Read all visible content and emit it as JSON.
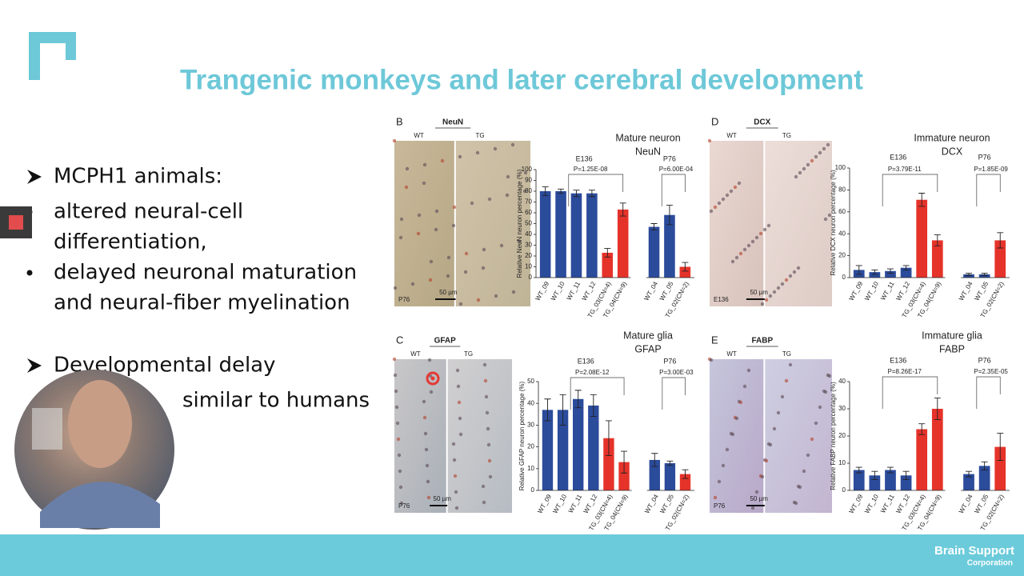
{
  "slide_title": "Trangenic monkeys and later cerebral development",
  "sections": [
    {
      "heading": [
        "MCPH1 animals:"
      ],
      "items": [
        [
          "altered neural-cell",
          "differentiation,"
        ],
        [
          "delayed neuronal maturation",
          "and neural-fiber myelination"
        ]
      ]
    },
    {
      "heading": [
        "Developmental delay",
        "similar to humans"
      ],
      "items": []
    }
  ],
  "footer": {
    "brand": "Brain Support",
    "brand_sub": "Corporation"
  },
  "chart_data": [
    {
      "type": "bar",
      "panel": "B",
      "stain": "NeuN",
      "image_labels": [
        "WT",
        "TG"
      ],
      "stage": "P76",
      "scale": "50 µm",
      "title": [
        "Mature neuron",
        "NeuN"
      ],
      "y_label": "Relative NeuN neuron percentage (%)",
      "categories": [
        "WT_09",
        "WT_10",
        "WT_11",
        "WT_12",
        "TG_03(CN=4)",
        "TG_04(CN=9)",
        "WT_04",
        "WT_05",
        "TG_02(CN=2)"
      ],
      "values": [
        80,
        80,
        78,
        78,
        23,
        63,
        47,
        58,
        10
      ],
      "errors": [
        4,
        2,
        3,
        3,
        4,
        6,
        3,
        9,
        4
      ],
      "colors": [
        "#2b4b9b",
        "#2b4b9b",
        "#2b4b9b",
        "#2b4b9b",
        "#e5332a",
        "#e5332a",
        "#2b4b9b",
        "#2b4b9b",
        "#e5332a"
      ],
      "groups": [
        {
          "label": "E136",
          "p": "P=1.25E-08"
        },
        {
          "label": "P76",
          "p": "P=6.00E-04"
        }
      ],
      "ylim": [
        0,
        100
      ],
      "yticks": [
        0,
        10,
        20,
        30,
        40,
        50,
        60,
        70,
        80,
        90,
        100
      ]
    },
    {
      "type": "bar",
      "panel": "D",
      "stain": "DCX",
      "image_labels": [
        "WT",
        "TG"
      ],
      "stage": "E136",
      "scale": "50 µm",
      "title": [
        "Immature neuron",
        "DCX"
      ],
      "y_label": "Relative DCX neuron percentage (%)",
      "categories": [
        "WT_09",
        "WT_10",
        "WT_11",
        "WT_12",
        "TG_03(CN=4)",
        "TG_04(CN=9)",
        "WT_04",
        "WT_05",
        "TG_02(CN=2)"
      ],
      "values": [
        7,
        5,
        6,
        9,
        71,
        34,
        3,
        3,
        34
      ],
      "errors": [
        4,
        2,
        2,
        2,
        6,
        5,
        1,
        1,
        7
      ],
      "colors": [
        "#2b4b9b",
        "#2b4b9b",
        "#2b4b9b",
        "#2b4b9b",
        "#e5332a",
        "#e5332a",
        "#2b4b9b",
        "#2b4b9b",
        "#e5332a"
      ],
      "groups": [
        {
          "label": "E136",
          "p": "P=3.79E-11"
        },
        {
          "label": "P76",
          "p": "P=1.85E-09"
        }
      ],
      "ylim": [
        0,
        100
      ],
      "yticks": [
        0,
        20,
        40,
        60,
        80,
        100
      ]
    },
    {
      "type": "bar",
      "panel": "C",
      "stain": "GFAP",
      "image_labels": [
        "WT",
        "TG"
      ],
      "stage": "P76",
      "scale": "50 µm",
      "title": [
        "Mature glia",
        "GFAP"
      ],
      "y_label": "Relative GFAP neuron percentage (%)",
      "categories": [
        "WT_09",
        "WT_10",
        "WT_11",
        "WT_12",
        "TG_03(CN=4)",
        "TG_04(CN=9)",
        "WT_04",
        "WT_05",
        "TG_02(CN=2)"
      ],
      "values": [
        37,
        37,
        42,
        39,
        24,
        13,
        14,
        12.5,
        7.5
      ],
      "errors": [
        5,
        7,
        4,
        5,
        8,
        5,
        3,
        1,
        2
      ],
      "colors": [
        "#2b4b9b",
        "#2b4b9b",
        "#2b4b9b",
        "#2b4b9b",
        "#e5332a",
        "#e5332a",
        "#2b4b9b",
        "#2b4b9b",
        "#e5332a"
      ],
      "groups": [
        {
          "label": "E136",
          "p": "P=2.08E-12"
        },
        {
          "label": "P76",
          "p": "P=3.00E-03"
        }
      ],
      "ylim": [
        0,
        50
      ],
      "yticks": [
        0,
        10,
        20,
        30,
        40,
        50
      ]
    },
    {
      "type": "bar",
      "panel": "E",
      "stain": "FABP",
      "image_labels": [
        "WT",
        "TG"
      ],
      "stage": "P76",
      "scale": "50 µm",
      "title": [
        "Immature glia",
        "FABP"
      ],
      "y_label": "Relative FABP neuron percentage (%)",
      "categories": [
        "WT_09",
        "WT_10",
        "WT_11",
        "WT_12",
        "TG_03(CN=4)",
        "TG_04(CN=9)",
        "WT_04",
        "WT_05",
        "TG_02(CN=2)"
      ],
      "values": [
        7.5,
        5.5,
        7.5,
        5.5,
        22.5,
        30,
        6,
        9,
        16
      ],
      "errors": [
        1,
        1.5,
        1,
        1.5,
        2,
        4,
        1,
        1.5,
        5
      ],
      "colors": [
        "#2b4b9b",
        "#2b4b9b",
        "#2b4b9b",
        "#2b4b9b",
        "#e5332a",
        "#e5332a",
        "#2b4b9b",
        "#2b4b9b",
        "#e5332a"
      ],
      "groups": [
        {
          "label": "E136",
          "p": "P=8.26E-17"
        },
        {
          "label": "P76",
          "p": "P=2.35E-05"
        }
      ],
      "ylim": [
        0,
        40
      ],
      "yticks": [
        0,
        10,
        20,
        30,
        40
      ]
    }
  ]
}
